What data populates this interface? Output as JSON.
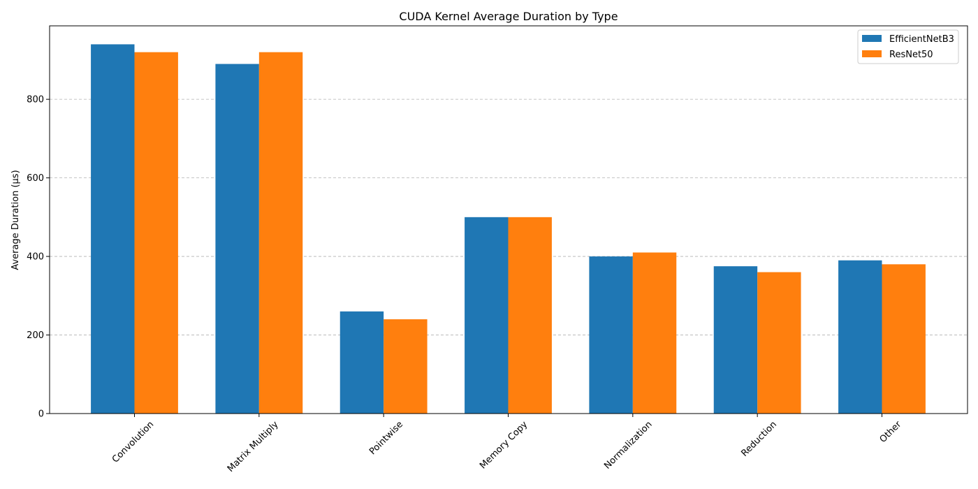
{
  "chart_data": {
    "type": "bar",
    "title": "CUDA Kernel Average Duration by Type",
    "xlabel": "",
    "ylabel": "Average Duration (µs)",
    "categories": [
      "Convolution",
      "Matrix Multiply",
      "Pointwise",
      "Memory Copy",
      "Normalization",
      "Reduction",
      "Other"
    ],
    "series": [
      {
        "name": "EfficientNetB3",
        "color": "#1f77b4",
        "values": [
          940,
          890,
          260,
          500,
          400,
          375,
          390
        ]
      },
      {
        "name": "ResNet50",
        "color": "#ff7f0e",
        "values": [
          920,
          920,
          240,
          500,
          410,
          360,
          380
        ]
      }
    ],
    "yticks": [
      0,
      200,
      400,
      600,
      800
    ],
    "ylim": [
      0,
      987
    ],
    "grid": "y-dashed",
    "legend": "top-right"
  }
}
